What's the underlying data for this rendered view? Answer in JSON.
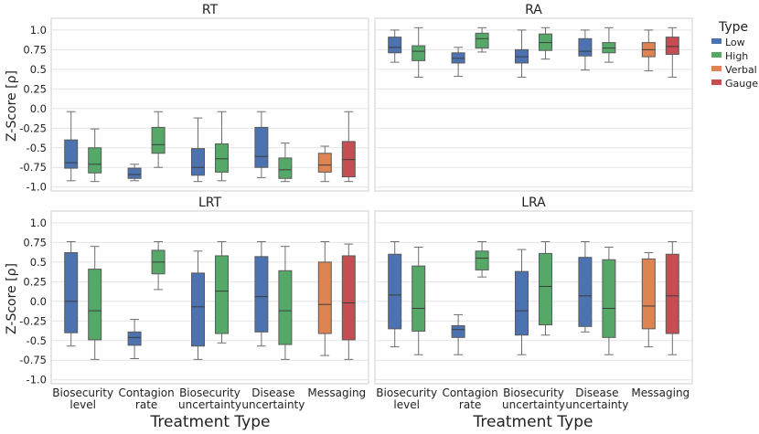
{
  "chart_data": {
    "type": "box",
    "x_label": "Treatment Type",
    "y_label": "Z-Score [ρ]",
    "yticks": [
      "1.0",
      "0.75",
      "0.5",
      "0.25",
      "0.0",
      "-0.25",
      "-0.5",
      "-0.75",
      "-1.0"
    ],
    "ylim": [
      -1.05,
      1.15
    ],
    "categories": [
      {
        "lines": [
          "Biosecurity",
          "level"
        ]
      },
      {
        "lines": [
          "Contagion",
          "rate"
        ]
      },
      {
        "lines": [
          "Biosecurity",
          "uncertainty"
        ]
      },
      {
        "lines": [
          "Disease",
          "uncertainty"
        ]
      },
      {
        "lines": [
          "Messaging"
        ]
      }
    ],
    "legend": {
      "title": "Type",
      "items": [
        {
          "label": "Low",
          "color": "#4c72b0"
        },
        {
          "label": "High",
          "color": "#55a868"
        },
        {
          "label": "Verbal",
          "color": "#dd8452"
        },
        {
          "label": "Gauge",
          "color": "#c44e52"
        }
      ]
    },
    "panels": [
      {
        "title": "RT",
        "boxes": [
          {
            "category": 0,
            "type": "Low",
            "whisker_low": -0.92,
            "q1": -0.76,
            "median": -0.69,
            "q3": -0.4,
            "whisker_high": -0.04
          },
          {
            "category": 0,
            "type": "High",
            "whisker_low": -0.93,
            "q1": -0.82,
            "median": -0.71,
            "q3": -0.5,
            "whisker_high": -0.26
          },
          {
            "category": 1,
            "type": "Low",
            "whisker_low": -0.92,
            "q1": -0.89,
            "median": -0.84,
            "q3": -0.76,
            "whisker_high": -0.71
          },
          {
            "category": 1,
            "type": "High",
            "whisker_low": -0.75,
            "q1": -0.57,
            "median": -0.46,
            "q3": -0.24,
            "whisker_high": -0.04
          },
          {
            "category": 2,
            "type": "Low",
            "whisker_low": -0.93,
            "q1": -0.85,
            "median": -0.75,
            "q3": -0.51,
            "whisker_high": -0.12
          },
          {
            "category": 2,
            "type": "High",
            "whisker_low": -0.92,
            "q1": -0.81,
            "median": -0.64,
            "q3": -0.45,
            "whisker_high": -0.04
          },
          {
            "category": 3,
            "type": "Low",
            "whisker_low": -0.88,
            "q1": -0.75,
            "median": -0.61,
            "q3": -0.24,
            "whisker_high": -0.04
          },
          {
            "category": 3,
            "type": "High",
            "whisker_low": -0.93,
            "q1": -0.89,
            "median": -0.78,
            "q3": -0.63,
            "whisker_high": -0.44
          },
          {
            "category": 4,
            "type": "Verbal",
            "whisker_low": -0.93,
            "q1": -0.81,
            "median": -0.72,
            "q3": -0.57,
            "whisker_high": -0.48
          },
          {
            "category": 4,
            "type": "Gauge",
            "whisker_low": -0.93,
            "q1": -0.87,
            "median": -0.65,
            "q3": -0.42,
            "whisker_high": -0.04
          }
        ]
      },
      {
        "title": "RA",
        "boxes": [
          {
            "category": 0,
            "type": "Low",
            "whisker_low": 0.59,
            "q1": 0.71,
            "median": 0.78,
            "q3": 0.91,
            "whisker_high": 1.0
          },
          {
            "category": 0,
            "type": "High",
            "whisker_low": 0.4,
            "q1": 0.61,
            "median": 0.73,
            "q3": 0.8,
            "whisker_high": 1.03
          },
          {
            "category": 1,
            "type": "Low",
            "whisker_low": 0.41,
            "q1": 0.58,
            "median": 0.64,
            "q3": 0.71,
            "whisker_high": 0.78
          },
          {
            "category": 1,
            "type": "High",
            "whisker_low": 0.72,
            "q1": 0.77,
            "median": 0.89,
            "q3": 0.96,
            "whisker_high": 1.03
          },
          {
            "category": 2,
            "type": "Low",
            "whisker_low": 0.4,
            "q1": 0.58,
            "median": 0.66,
            "q3": 0.75,
            "whisker_high": 1.0
          },
          {
            "category": 2,
            "type": "High",
            "whisker_low": 0.63,
            "q1": 0.74,
            "median": 0.84,
            "q3": 0.95,
            "whisker_high": 1.03
          },
          {
            "category": 3,
            "type": "Low",
            "whisker_low": 0.49,
            "q1": 0.67,
            "median": 0.73,
            "q3": 0.89,
            "whisker_high": 1.0
          },
          {
            "category": 3,
            "type": "High",
            "whisker_low": 0.59,
            "q1": 0.71,
            "median": 0.77,
            "q3": 0.84,
            "whisker_high": 1.03
          },
          {
            "category": 4,
            "type": "Verbal",
            "whisker_low": 0.48,
            "q1": 0.66,
            "median": 0.75,
            "q3": 0.84,
            "whisker_high": 1.0
          },
          {
            "category": 4,
            "type": "Gauge",
            "whisker_low": 0.4,
            "q1": 0.69,
            "median": 0.79,
            "q3": 0.91,
            "whisker_high": 1.03
          }
        ]
      },
      {
        "title": "LRT",
        "boxes": [
          {
            "category": 0,
            "type": "Low",
            "whisker_low": -0.57,
            "q1": -0.4,
            "median": 0.0,
            "q3": 0.62,
            "whisker_high": 0.76
          },
          {
            "category": 0,
            "type": "High",
            "whisker_low": -0.74,
            "q1": -0.49,
            "median": -0.12,
            "q3": 0.41,
            "whisker_high": 0.7
          },
          {
            "category": 1,
            "type": "Low",
            "whisker_low": -0.73,
            "q1": -0.56,
            "median": -0.46,
            "q3": -0.39,
            "whisker_high": -0.23
          },
          {
            "category": 1,
            "type": "High",
            "whisker_low": 0.15,
            "q1": 0.35,
            "median": 0.5,
            "q3": 0.65,
            "whisker_high": 0.76
          },
          {
            "category": 2,
            "type": "Low",
            "whisker_low": -0.74,
            "q1": -0.57,
            "median": -0.07,
            "q3": 0.36,
            "whisker_high": 0.64
          },
          {
            "category": 2,
            "type": "High",
            "whisker_low": -0.53,
            "q1": -0.41,
            "median": 0.13,
            "q3": 0.58,
            "whisker_high": 0.76
          },
          {
            "category": 3,
            "type": "Low",
            "whisker_low": -0.57,
            "q1": -0.39,
            "median": 0.06,
            "q3": 0.57,
            "whisker_high": 0.76
          },
          {
            "category": 3,
            "type": "High",
            "whisker_low": -0.74,
            "q1": -0.55,
            "median": -0.12,
            "q3": 0.39,
            "whisker_high": 0.7
          },
          {
            "category": 4,
            "type": "Verbal",
            "whisker_low": -0.69,
            "q1": -0.41,
            "median": -0.04,
            "q3": 0.5,
            "whisker_high": 0.76
          },
          {
            "category": 4,
            "type": "Gauge",
            "whisker_low": -0.74,
            "q1": -0.49,
            "median": -0.02,
            "q3": 0.58,
            "whisker_high": 0.73
          }
        ]
      },
      {
        "title": "LRA",
        "boxes": [
          {
            "category": 0,
            "type": "Low",
            "whisker_low": -0.58,
            "q1": -0.35,
            "median": 0.08,
            "q3": 0.6,
            "whisker_high": 0.76
          },
          {
            "category": 0,
            "type": "High",
            "whisker_low": -0.68,
            "q1": -0.38,
            "median": -0.09,
            "q3": 0.45,
            "whisker_high": 0.69
          },
          {
            "category": 1,
            "type": "Low",
            "whisker_low": -0.68,
            "q1": -0.46,
            "median": -0.36,
            "q3": -0.31,
            "whisker_high": -0.17
          },
          {
            "category": 1,
            "type": "High",
            "whisker_low": 0.31,
            "q1": 0.4,
            "median": 0.55,
            "q3": 0.64,
            "whisker_high": 0.76
          },
          {
            "category": 2,
            "type": "Low",
            "whisker_low": -0.68,
            "q1": -0.43,
            "median": -0.12,
            "q3": 0.38,
            "whisker_high": 0.66
          },
          {
            "category": 2,
            "type": "High",
            "whisker_low": -0.43,
            "q1": -0.3,
            "median": 0.19,
            "q3": 0.61,
            "whisker_high": 0.76
          },
          {
            "category": 3,
            "type": "Low",
            "whisker_low": -0.39,
            "q1": -0.32,
            "median": 0.07,
            "q3": 0.56,
            "whisker_high": 0.76
          },
          {
            "category": 3,
            "type": "High",
            "whisker_low": -0.68,
            "q1": -0.46,
            "median": -0.09,
            "q3": 0.53,
            "whisker_high": 0.69
          },
          {
            "category": 4,
            "type": "Verbal",
            "whisker_low": -0.58,
            "q1": -0.35,
            "median": -0.06,
            "q3": 0.54,
            "whisker_high": 0.62
          },
          {
            "category": 4,
            "type": "Gauge",
            "whisker_low": -0.68,
            "q1": -0.41,
            "median": 0.07,
            "q3": 0.6,
            "whisker_high": 0.76
          }
        ]
      }
    ]
  }
}
